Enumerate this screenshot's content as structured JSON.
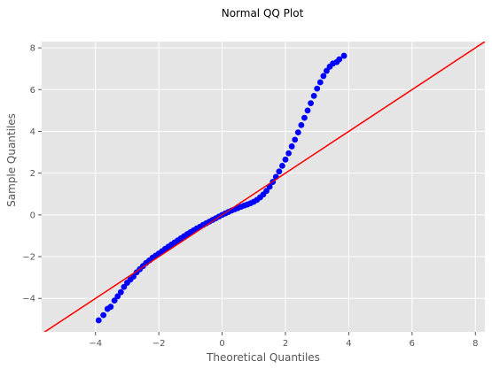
{
  "chart_data": {
    "type": "scatter",
    "title": "Normal QQ Plot",
    "xlabel": "Theoretical Quantiles",
    "ylabel": "Sample Quantiles",
    "xlim": [
      -5.7,
      8.3
    ],
    "ylim": [
      -5.6,
      8.3
    ],
    "x_ticks": [
      -4,
      -2,
      0,
      2,
      4,
      6,
      8
    ],
    "y_ticks": [
      -4,
      -2,
      0,
      2,
      4,
      6,
      8
    ],
    "x_tick_labels": [
      "−4",
      "−2",
      "0",
      "2",
      "4",
      "6",
      "8"
    ],
    "y_tick_labels": [
      "−4",
      "−2",
      "0",
      "2",
      "4",
      "6",
      "8"
    ],
    "grid": true,
    "colors": {
      "background": "#e5e5e5",
      "grid": "#ffffff",
      "points": "#0000ff",
      "reference_line": "#ff0000"
    },
    "reference_line": {
      "slope": 1,
      "intercept": 0
    },
    "points": [
      [
        -3.9,
        -5.05
      ],
      [
        -3.75,
        -4.8
      ],
      [
        -3.62,
        -4.5
      ],
      [
        -3.52,
        -4.4
      ],
      [
        -3.4,
        -4.1
      ],
      [
        -3.3,
        -3.9
      ],
      [
        -3.2,
        -3.7
      ],
      [
        -3.1,
        -3.45
      ],
      [
        -3.0,
        -3.25
      ],
      [
        -2.9,
        -3.1
      ],
      [
        -2.8,
        -2.95
      ],
      [
        -2.7,
        -2.75
      ],
      [
        -2.6,
        -2.6
      ],
      [
        -2.5,
        -2.45
      ],
      [
        -2.4,
        -2.3
      ],
      [
        -2.3,
        -2.18
      ],
      [
        -2.2,
        -2.05
      ],
      [
        -2.1,
        -1.95
      ],
      [
        -2.0,
        -1.85
      ],
      [
        -1.9,
        -1.74
      ],
      [
        -1.8,
        -1.63
      ],
      [
        -1.7,
        -1.52
      ],
      [
        -1.6,
        -1.42
      ],
      [
        -1.5,
        -1.32
      ],
      [
        -1.4,
        -1.22
      ],
      [
        -1.3,
        -1.12
      ],
      [
        -1.2,
        -1.02
      ],
      [
        -1.1,
        -0.92
      ],
      [
        -1.0,
        -0.83
      ],
      [
        -0.9,
        -0.74
      ],
      [
        -0.8,
        -0.65
      ],
      [
        -0.7,
        -0.57
      ],
      [
        -0.6,
        -0.48
      ],
      [
        -0.5,
        -0.4
      ],
      [
        -0.4,
        -0.32
      ],
      [
        -0.3,
        -0.24
      ],
      [
        -0.2,
        -0.16
      ],
      [
        -0.1,
        -0.08
      ],
      [
        0.0,
        0.0
      ],
      [
        0.1,
        0.07
      ],
      [
        0.2,
        0.14
      ],
      [
        0.3,
        0.21
      ],
      [
        0.4,
        0.27
      ],
      [
        0.5,
        0.33
      ],
      [
        0.6,
        0.39
      ],
      [
        0.7,
        0.45
      ],
      [
        0.8,
        0.5
      ],
      [
        0.9,
        0.56
      ],
      [
        1.0,
        0.63
      ],
      [
        1.1,
        0.72
      ],
      [
        1.2,
        0.84
      ],
      [
        1.3,
        0.98
      ],
      [
        1.4,
        1.15
      ],
      [
        1.5,
        1.35
      ],
      [
        1.6,
        1.58
      ],
      [
        1.7,
        1.82
      ],
      [
        1.8,
        2.08
      ],
      [
        1.9,
        2.35
      ],
      [
        2.0,
        2.65
      ],
      [
        2.1,
        2.95
      ],
      [
        2.2,
        3.28
      ],
      [
        2.3,
        3.6
      ],
      [
        2.4,
        3.95
      ],
      [
        2.5,
        4.3
      ],
      [
        2.6,
        4.65
      ],
      [
        2.7,
        5.0
      ],
      [
        2.8,
        5.35
      ],
      [
        2.9,
        5.7
      ],
      [
        3.0,
        6.05
      ],
      [
        3.1,
        6.35
      ],
      [
        3.2,
        6.65
      ],
      [
        3.3,
        6.9
      ],
      [
        3.4,
        7.1
      ],
      [
        3.5,
        7.25
      ],
      [
        3.62,
        7.32
      ],
      [
        3.7,
        7.45
      ],
      [
        3.85,
        7.62
      ]
    ]
  }
}
